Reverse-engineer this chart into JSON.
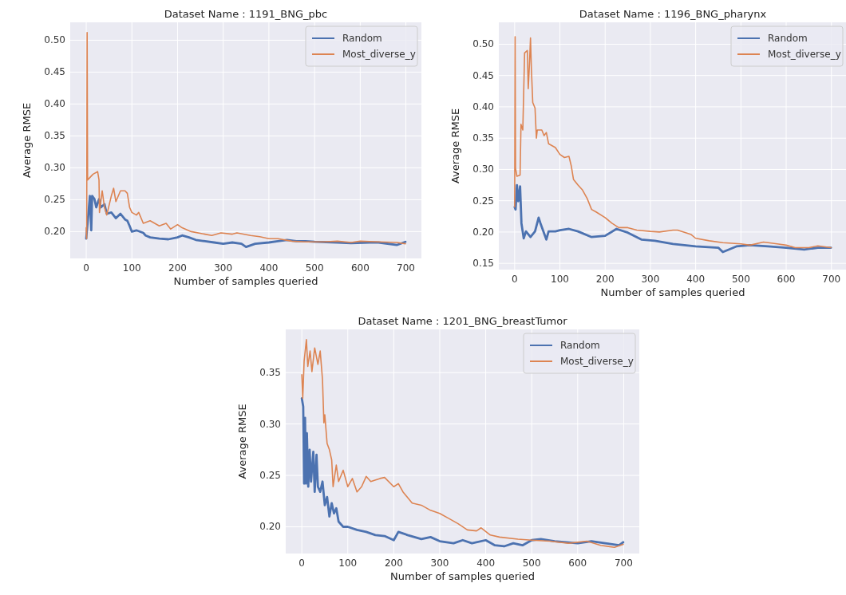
{
  "chart_data": [
    {
      "type": "line",
      "title": "Dataset Name : 1191_BNG_pbc",
      "xlabel": "Number of samples queried",
      "ylabel": "Average RMSE",
      "xlim": [
        -35,
        734
      ],
      "ylim": [
        0.158,
        0.528
      ],
      "xticks": [
        0,
        100,
        200,
        300,
        400,
        500,
        600,
        700
      ],
      "yticks": [
        {
          "value": 0.2,
          "label": "0.20"
        },
        {
          "value": 0.25,
          "label": "0.25"
        },
        {
          "value": 0.3,
          "label": "0.30"
        },
        {
          "value": 0.35,
          "label": "0.35"
        },
        {
          "value": 0.4,
          "label": "0.40"
        },
        {
          "value": 0.45,
          "label": "0.45"
        },
        {
          "value": 0.5,
          "label": "0.50"
        }
      ],
      "grid": true,
      "legend": "top right",
      "line_style": "solid",
      "series": [
        {
          "name": "Random",
          "color": "#4c72b0",
          "x": [
            0,
            5,
            8,
            11,
            13,
            18,
            22,
            28,
            32,
            40,
            45,
            55,
            65,
            75,
            85,
            90,
            95,
            100,
            110,
            125,
            130,
            140,
            160,
            180,
            200,
            210,
            225,
            240,
            260,
            280,
            300,
            320,
            340,
            350,
            370,
            400,
            420,
            440,
            460,
            480,
            500,
            550,
            580,
            620,
            640,
            680,
            699
          ],
          "values": [
            0.189,
            0.23,
            0.256,
            0.202,
            0.256,
            0.251,
            0.238,
            0.251,
            0.238,
            0.243,
            0.228,
            0.23,
            0.221,
            0.228,
            0.219,
            0.217,
            0.209,
            0.2,
            0.202,
            0.198,
            0.194,
            0.191,
            0.189,
            0.188,
            0.191,
            0.194,
            0.191,
            0.187,
            0.185,
            0.183,
            0.181,
            0.183,
            0.181,
            0.176,
            0.181,
            0.183,
            0.185,
            0.187,
            0.185,
            0.185,
            0.184,
            0.183,
            0.182,
            0.183,
            0.183,
            0.179,
            0.184
          ]
        },
        {
          "name": "Most_diverse_y",
          "color": "#dd8452",
          "x": [
            0,
            1,
            2,
            3,
            15,
            25,
            28,
            29,
            35,
            40,
            45,
            55,
            60,
            65,
            75,
            85,
            90,
            95,
            100,
            110,
            115,
            125,
            140,
            160,
            175,
            185,
            200,
            210,
            230,
            260,
            275,
            295,
            320,
            330,
            360,
            380,
            400,
            420,
            450,
            480,
            520,
            550,
            580,
            600,
            640,
            680,
            699
          ],
          "values": [
            0.206,
            0.189,
            0.512,
            0.281,
            0.29,
            0.294,
            0.281,
            0.23,
            0.264,
            0.238,
            0.226,
            0.256,
            0.268,
            0.247,
            0.264,
            0.264,
            0.26,
            0.238,
            0.23,
            0.226,
            0.23,
            0.213,
            0.217,
            0.209,
            0.213,
            0.204,
            0.211,
            0.206,
            0.2,
            0.196,
            0.194,
            0.198,
            0.196,
            0.198,
            0.194,
            0.192,
            0.189,
            0.189,
            0.185,
            0.184,
            0.184,
            0.185,
            0.183,
            0.185,
            0.184,
            0.183,
            0.181
          ]
        }
      ]
    },
    {
      "type": "line",
      "title": "Dataset Name : 1196_BNG_pharynx",
      "xlabel": "Number of samples queried",
      "ylabel": "Average RMSE",
      "xlim": [
        -35,
        734
      ],
      "ylim": [
        0.14,
        0.535
      ],
      "xticks": [
        0,
        100,
        200,
        300,
        400,
        500,
        600,
        700
      ],
      "yticks": [
        {
          "value": 0.15,
          "label": "0.15"
        },
        {
          "value": 0.2,
          "label": "0.20"
        },
        {
          "value": 0.25,
          "label": "0.25"
        },
        {
          "value": 0.3,
          "label": "0.30"
        },
        {
          "value": 0.35,
          "label": "0.35"
        },
        {
          "value": 0.4,
          "label": "0.40"
        },
        {
          "value": 0.45,
          "label": "0.45"
        },
        {
          "value": 0.5,
          "label": "0.50"
        }
      ],
      "grid": true,
      "legend": "top right",
      "line_style": "solid",
      "series": [
        {
          "name": "Random",
          "color": "#4c72b0",
          "x": [
            0,
            2,
            5,
            8,
            12,
            15,
            20,
            25,
            35,
            45,
            53,
            57,
            70,
            75,
            90,
            100,
            120,
            140,
            170,
            200,
            225,
            250,
            280,
            310,
            350,
            400,
            450,
            460,
            490,
            520,
            560,
            600,
            640,
            670,
            699
          ],
          "values": [
            0.24,
            0.236,
            0.275,
            0.249,
            0.273,
            0.214,
            0.19,
            0.201,
            0.192,
            0.201,
            0.223,
            0.214,
            0.188,
            0.201,
            0.201,
            0.203,
            0.205,
            0.201,
            0.192,
            0.194,
            0.205,
            0.199,
            0.188,
            0.186,
            0.181,
            0.177,
            0.175,
            0.168,
            0.177,
            0.179,
            0.177,
            0.175,
            0.172,
            0.175,
            0.175
          ]
        },
        {
          "name": "Most_diverse_y",
          "color": "#dd8452",
          "x": [
            0,
            1,
            2,
            5,
            12,
            14,
            18,
            22,
            28,
            30,
            33,
            35,
            37,
            40,
            45,
            48,
            50,
            60,
            65,
            70,
            75,
            90,
            100,
            110,
            120,
            125,
            130,
            140,
            150,
            160,
            170,
            180,
            200,
            215,
            230,
            250,
            270,
            300,
            320,
            350,
            360,
            390,
            400,
            430,
            460,
            500,
            520,
            550,
            580,
            600,
            620,
            650,
            670,
            699
          ],
          "values": [
            0.24,
            0.512,
            0.302,
            0.289,
            0.291,
            0.372,
            0.363,
            0.486,
            0.49,
            0.429,
            0.473,
            0.51,
            0.46,
            0.407,
            0.398,
            0.35,
            0.363,
            0.363,
            0.354,
            0.359,
            0.341,
            0.335,
            0.324,
            0.319,
            0.321,
            0.306,
            0.284,
            0.275,
            0.267,
            0.254,
            0.236,
            0.232,
            0.223,
            0.214,
            0.207,
            0.207,
            0.203,
            0.201,
            0.2,
            0.203,
            0.203,
            0.196,
            0.19,
            0.186,
            0.183,
            0.181,
            0.179,
            0.184,
            0.181,
            0.179,
            0.175,
            0.175,
            0.178,
            0.175
          ]
        }
      ]
    },
    {
      "type": "line",
      "title": "Dataset Name : 1201_BNG_breastTumor",
      "xlabel": "Number of samples queried",
      "ylabel": "Average RMSE",
      "xlim": [
        -35,
        734
      ],
      "ylim": [
        0.174,
        0.392
      ],
      "xticks": [
        0,
        100,
        200,
        300,
        400,
        500,
        600,
        700
      ],
      "yticks": [
        {
          "value": 0.2,
          "label": "0.20"
        },
        {
          "value": 0.25,
          "label": "0.25"
        },
        {
          "value": 0.3,
          "label": "0.30"
        },
        {
          "value": 0.35,
          "label": "0.35"
        }
      ],
      "grid": true,
      "legend": "top right",
      "line_style": "solid",
      "series": [
        {
          "name": "Random",
          "color": "#4c72b0",
          "x": [
            0,
            3,
            5,
            7,
            9,
            11,
            14,
            17,
            20,
            25,
            28,
            32,
            35,
            40,
            45,
            50,
            55,
            60,
            65,
            70,
            75,
            80,
            90,
            100,
            120,
            140,
            160,
            180,
            200,
            210,
            230,
            260,
            280,
            300,
            330,
            350,
            370,
            400,
            420,
            440,
            460,
            480,
            500,
            520,
            550,
            600,
            630,
            660,
            690,
            699
          ],
          "values": [
            0.325,
            0.317,
            0.242,
            0.306,
            0.242,
            0.291,
            0.239,
            0.275,
            0.244,
            0.273,
            0.234,
            0.27,
            0.239,
            0.234,
            0.244,
            0.221,
            0.229,
            0.21,
            0.223,
            0.213,
            0.218,
            0.205,
            0.2,
            0.2,
            0.197,
            0.195,
            0.192,
            0.191,
            0.187,
            0.195,
            0.192,
            0.188,
            0.19,
            0.186,
            0.184,
            0.187,
            0.184,
            0.187,
            0.182,
            0.181,
            0.184,
            0.182,
            0.187,
            0.188,
            0.186,
            0.184,
            0.186,
            0.184,
            0.182,
            0.185
          ]
        },
        {
          "name": "Most_diverse_y",
          "color": "#dd8452",
          "x": [
            0,
            2,
            5,
            10,
            13,
            18,
            22,
            28,
            35,
            40,
            45,
            48,
            50,
            55,
            60,
            65,
            68,
            75,
            80,
            90,
            100,
            110,
            120,
            130,
            140,
            150,
            170,
            180,
            200,
            210,
            220,
            240,
            260,
            280,
            300,
            320,
            340,
            360,
            380,
            390,
            410,
            430,
            470,
            500,
            540,
            580,
            620,
            650,
            680,
            699
          ],
          "values": [
            0.348,
            0.325,
            0.361,
            0.382,
            0.356,
            0.371,
            0.351,
            0.374,
            0.358,
            0.371,
            0.343,
            0.301,
            0.309,
            0.281,
            0.275,
            0.265,
            0.239,
            0.26,
            0.244,
            0.255,
            0.239,
            0.247,
            0.234,
            0.239,
            0.249,
            0.244,
            0.247,
            0.248,
            0.239,
            0.242,
            0.234,
            0.223,
            0.221,
            0.216,
            0.213,
            0.208,
            0.203,
            0.197,
            0.196,
            0.199,
            0.192,
            0.19,
            0.188,
            0.187,
            0.186,
            0.184,
            0.186,
            0.182,
            0.18,
            0.183
          ]
        }
      ]
    }
  ]
}
